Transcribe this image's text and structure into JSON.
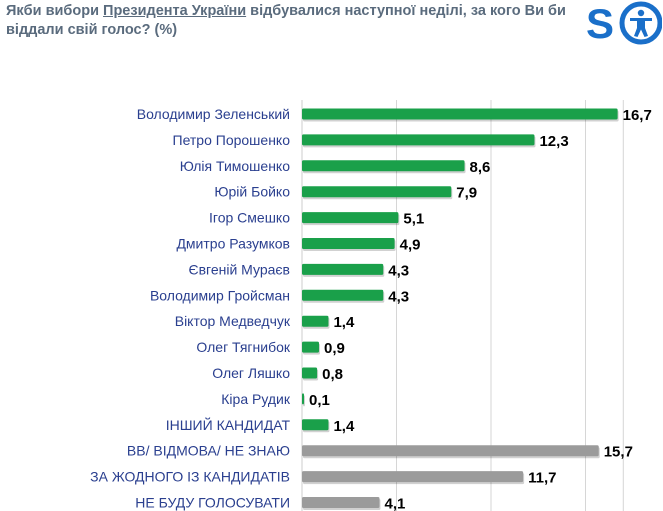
{
  "title": {
    "before": "Якби вибори ",
    "highlight": "Президента України",
    "after": " відбувалися наступної неділі, за кого Ви би віддали свій голос? (%)"
  },
  "logo": {
    "letter": "S",
    "icon": "person-in-circle-icon",
    "color": "#1a6fc9"
  },
  "colors": {
    "candidate_bar": "#1aa04a",
    "other_bar": "#9b9b9b",
    "grid": "#d6d6d6",
    "label": "#2a3f8f",
    "value": "#000000"
  },
  "chart_data": {
    "type": "bar",
    "orientation": "horizontal",
    "title": "Якби вибори Президента України відбувалися наступної неділі, за кого Ви би віддали свій голос? (%)",
    "categories": [
      "Володимир Зеленський",
      "Петро Порошенко",
      "Юлія Тимошенко",
      "Юрій Бойко",
      "Ігор Смешко",
      "Дмитро Разумков",
      "Євгеній Мураєв",
      "Володимир Гройсман",
      "Віктор Медведчук",
      "Олег Тягнибок",
      "Олег Ляшко",
      "Кіра Рудик",
      "ІНШИЙ КАНДИДАТ",
      "ВВ/ ВІДМОВА/ НЕ ЗНАЮ",
      "ЗА ЖОДНОГО ІЗ КАНДИДАТІВ",
      "НЕ БУДУ ГОЛОСУВАТИ"
    ],
    "values": [
      16.7,
      12.3,
      8.6,
      7.9,
      5.1,
      4.9,
      4.3,
      4.3,
      1.4,
      0.9,
      0.8,
      0.1,
      1.4,
      15.7,
      11.7,
      4.1
    ],
    "value_labels": [
      "16,7",
      "12,3",
      "8,6",
      "7,9",
      "5,1",
      "4,9",
      "4,3",
      "4,3",
      "1,4",
      "0,9",
      "0,8",
      "0,1",
      "1,4",
      "15,7",
      "11,7",
      "4,1"
    ],
    "bar_group": [
      "candidate",
      "candidate",
      "candidate",
      "candidate",
      "candidate",
      "candidate",
      "candidate",
      "candidate",
      "candidate",
      "candidate",
      "candidate",
      "candidate",
      "candidate",
      "other",
      "other",
      "other"
    ],
    "xlim": [
      0,
      17
    ],
    "grid": true,
    "legend": "none"
  }
}
